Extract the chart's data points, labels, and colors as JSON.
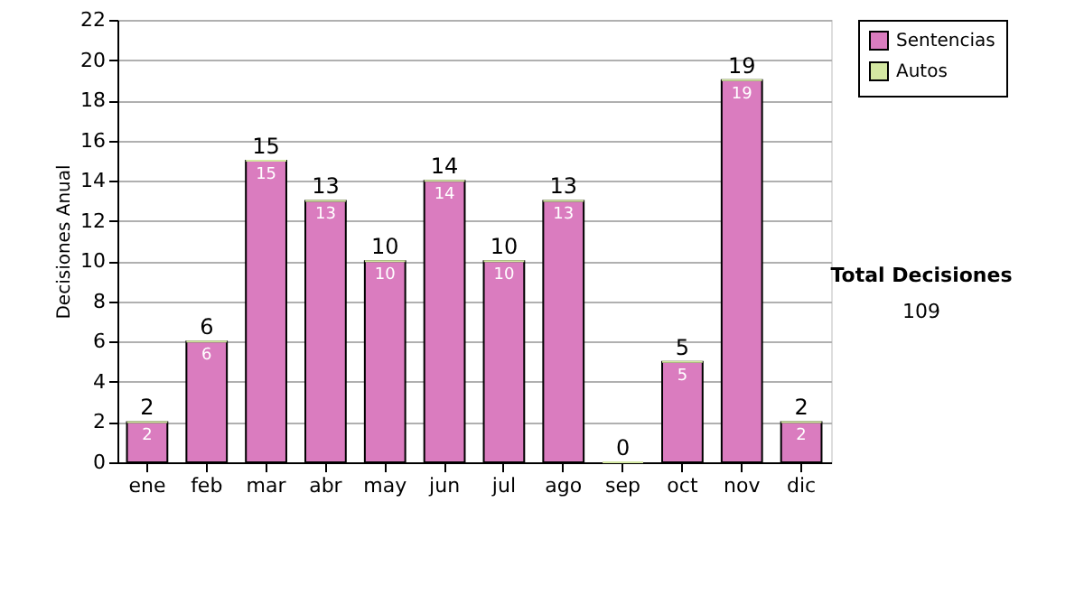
{
  "chart_data": {
    "type": "bar",
    "stacked": true,
    "ylabel": "Decisiones Anual",
    "categories": [
      "ene",
      "feb",
      "mar",
      "abr",
      "may",
      "jun",
      "jul",
      "ago",
      "sep",
      "oct",
      "nov",
      "dic"
    ],
    "series": [
      {
        "name": "Sentencias",
        "color": "#da7cbf",
        "values": [
          2,
          6,
          15,
          13,
          10,
          14,
          10,
          13,
          0,
          5,
          19,
          2
        ],
        "value_labels": [
          "2",
          "6",
          "15",
          "13",
          "10",
          "14",
          "10",
          "13",
          null,
          "5",
          "19",
          "2"
        ]
      },
      {
        "name": "Autos",
        "color": "#d4e8a2",
        "values": [
          0,
          0,
          0,
          0,
          0,
          0,
          0,
          0,
          0,
          0,
          0,
          0
        ]
      }
    ],
    "totals": [
      "2",
      "6",
      "15",
      "13",
      "10",
      "14",
      "10",
      "13",
      "0",
      "5",
      "19",
      "2"
    ],
    "ylim": [
      0,
      22
    ],
    "yticks": [
      0,
      2,
      4,
      6,
      8,
      10,
      12,
      14,
      16,
      18,
      20,
      22
    ],
    "grid": "y",
    "legend": "right",
    "annotations": [
      "Total Decisiones",
      "109"
    ]
  }
}
